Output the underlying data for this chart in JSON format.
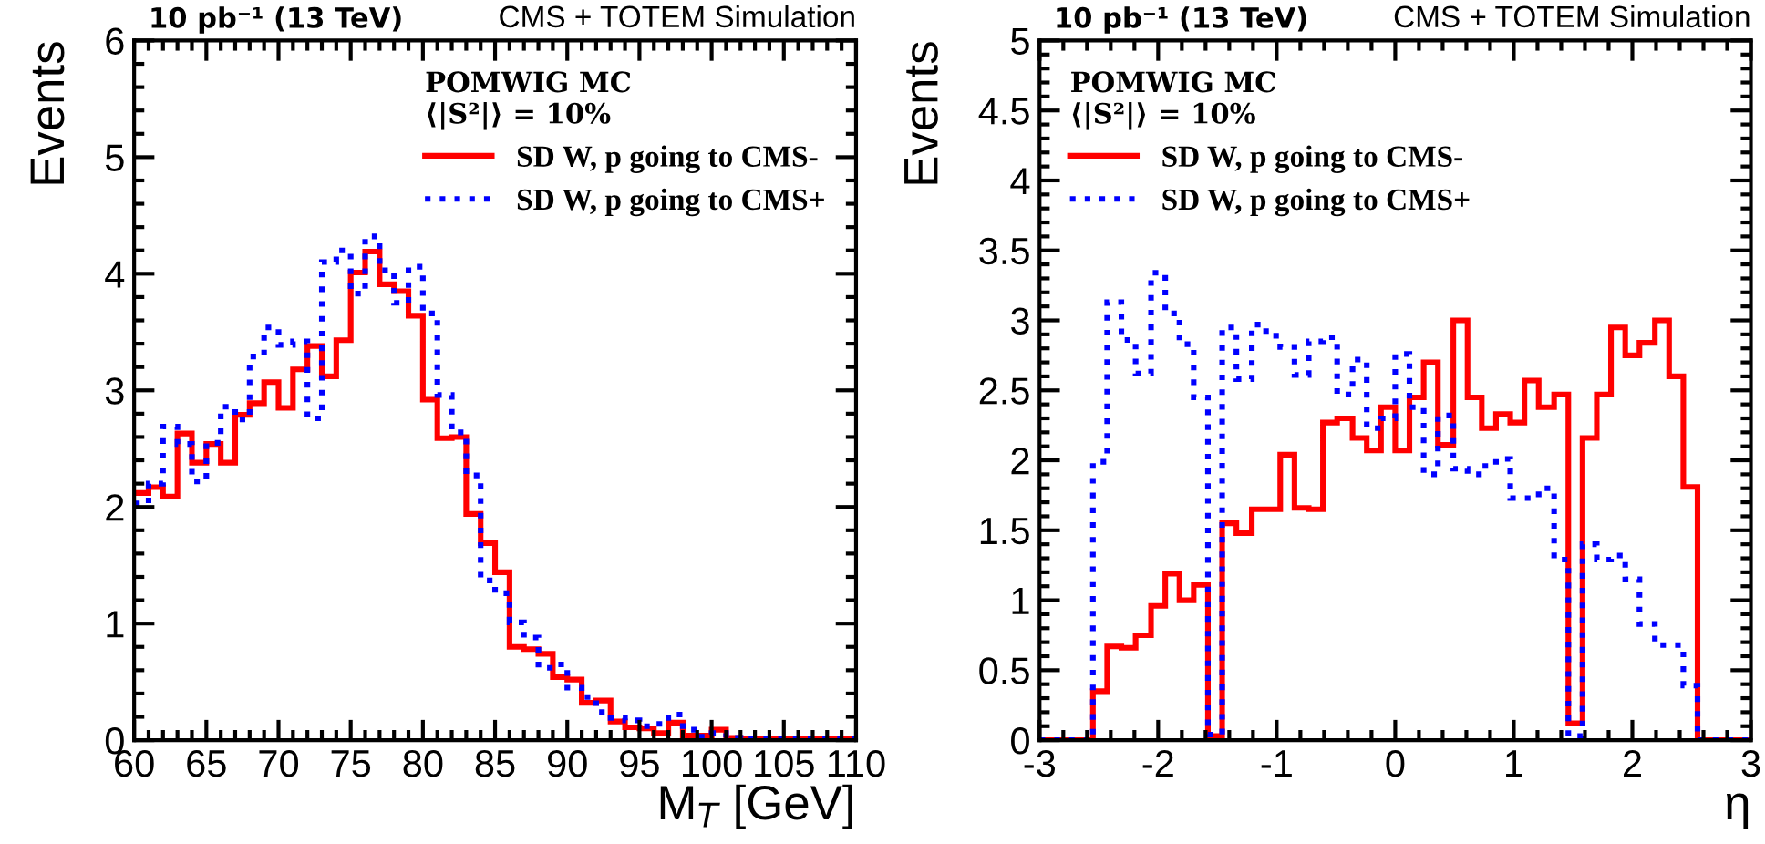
{
  "chart_data": [
    {
      "type": "histogram",
      "title": "CMS + TOTEM Simulation",
      "subtitle": "10 pb⁻¹ (13 TeV)",
      "xlabel": "M$_{T}$ [GeV]",
      "ylabel": "Events",
      "legend_title": "POMWIG MC\n⟨|S²|⟩ = 10%",
      "legend": "top right",
      "bins": [
        60,
        61,
        62,
        63,
        64,
        65,
        66,
        67,
        68,
        69,
        70,
        71,
        72,
        73,
        74,
        75,
        76,
        77,
        78,
        79,
        80,
        81,
        82,
        83,
        84,
        85,
        86,
        87,
        88,
        89,
        90,
        91,
        92,
        93,
        94,
        95,
        96,
        97,
        98,
        99,
        100,
        101,
        102,
        103,
        104,
        105,
        106,
        107,
        108,
        109,
        110
      ],
      "series": [
        {
          "name": "SD W, p going to CMS-",
          "color": "#ff0000",
          "line_style": "solid",
          "values": [
            2.12,
            2.17,
            2.09,
            2.63,
            2.38,
            2.54,
            2.38,
            2.79,
            2.89,
            3.07,
            2.85,
            3.18,
            3.38,
            3.12,
            3.43,
            4.01,
            4.19,
            3.91,
            3.85,
            3.64,
            2.92,
            2.59,
            2.6,
            1.94,
            1.69,
            1.44,
            0.8,
            0.78,
            0.74,
            0.54,
            0.52,
            0.32,
            0.34,
            0.16,
            0.11,
            0.1,
            0.06,
            0.15,
            0.04,
            0.04,
            0.09,
            0.02,
            0.01,
            0.01,
            0.01,
            0.01,
            0.01,
            0.01,
            0.01,
            0.01
          ]
        },
        {
          "name": "SD W, p going to CMS+",
          "color": "#0000ff",
          "line_style": "dotted",
          "values": [
            2.03,
            2.2,
            2.69,
            2.54,
            2.22,
            2.55,
            2.86,
            2.75,
            3.29,
            3.54,
            3.39,
            3.42,
            2.76,
            4.1,
            4.2,
            3.83,
            4.32,
            4.03,
            3.75,
            4.06,
            3.66,
            2.96,
            2.64,
            2.27,
            1.37,
            1.26,
            1.01,
            0.88,
            0.62,
            0.65,
            0.45,
            0.37,
            0.24,
            0.19,
            0.17,
            0.12,
            0.14,
            0.22,
            0.09,
            0.03,
            0.06,
            0.02,
            0.01,
            0.01,
            0.01,
            0.01,
            0.01,
            0.01,
            0.01,
            0.01
          ]
        }
      ],
      "xlim": [
        60,
        110
      ],
      "xticks": [
        60,
        65,
        70,
        75,
        80,
        85,
        90,
        95,
        100,
        105,
        110
      ],
      "ylim": [
        0,
        6
      ],
      "yticks": [
        0,
        1,
        2,
        3,
        4,
        5,
        6
      ],
      "grid": false
    },
    {
      "type": "histogram",
      "title": "CMS + TOTEM Simulation",
      "subtitle": "10 pb⁻¹ (13 TeV)",
      "xlabel": "η",
      "ylabel": "Events",
      "legend_title": "POMWIG MC\n⟨|S²|⟩ = 10%",
      "legend": "top left",
      "bins": [
        -3,
        -2.55,
        -2.43,
        -2.31,
        -2.19,
        -2.06,
        -1.94,
        -1.82,
        -1.7,
        -1.58,
        -1.46,
        -1.34,
        -1.21,
        -1.09,
        -0.97,
        -0.85,
        -0.73,
        -0.61,
        -0.49,
        -0.36,
        -0.24,
        -0.12,
        0,
        0.12,
        0.24,
        0.36,
        0.49,
        0.61,
        0.73,
        0.85,
        0.97,
        1.09,
        1.21,
        1.34,
        1.46,
        1.58,
        1.7,
        1.82,
        1.94,
        2.06,
        2.19,
        2.31,
        2.43,
        2.55,
        3
      ],
      "series": [
        {
          "name": "SD W, p going to CMS-",
          "color": "#ff0000",
          "line_style": "solid",
          "values": [
            0,
            0.35,
            0.67,
            0.66,
            0.75,
            0.96,
            1.19,
            1.0,
            1.11,
            0.03,
            1.55,
            1.48,
            1.65,
            1.65,
            2.04,
            1.66,
            1.65,
            2.27,
            2.3,
            2.16,
            2.07,
            2.38,
            2.07,
            2.45,
            2.7,
            2.11,
            3.0,
            2.45,
            2.23,
            2.33,
            2.27,
            2.57,
            2.38,
            2.47,
            0.12,
            2.16,
            2.47,
            2.95,
            2.75,
            2.84,
            3.0,
            2.6,
            1.81,
            0
          ]
        },
        {
          "name": "SD W, p going to CMS+",
          "color": "#0000ff",
          "line_style": "dotted",
          "values": [
            0,
            1.99,
            3.13,
            2.86,
            2.62,
            3.34,
            3.05,
            2.83,
            2.45,
            0.04,
            2.95,
            2.58,
            2.97,
            2.89,
            2.81,
            2.61,
            2.85,
            2.88,
            2.47,
            2.72,
            2.23,
            2.3,
            2.76,
            2.38,
            1.9,
            2.32,
            1.94,
            1.9,
            1.96,
            2.01,
            1.73,
            1.73,
            1.8,
            1.29,
            0.03,
            1.4,
            1.29,
            1.32,
            1.15,
            0.83,
            0.68,
            0.68,
            0.39,
            0
          ]
        }
      ],
      "xlim": [
        -3,
        3
      ],
      "xticks": [
        -3,
        -2,
        -1,
        0,
        1,
        2,
        3
      ],
      "ylim": [
        0,
        5
      ],
      "yticks": [
        0,
        0.5,
        1,
        1.5,
        2,
        2.5,
        3,
        3.5,
        4,
        4.5,
        5
      ],
      "grid": false
    }
  ]
}
